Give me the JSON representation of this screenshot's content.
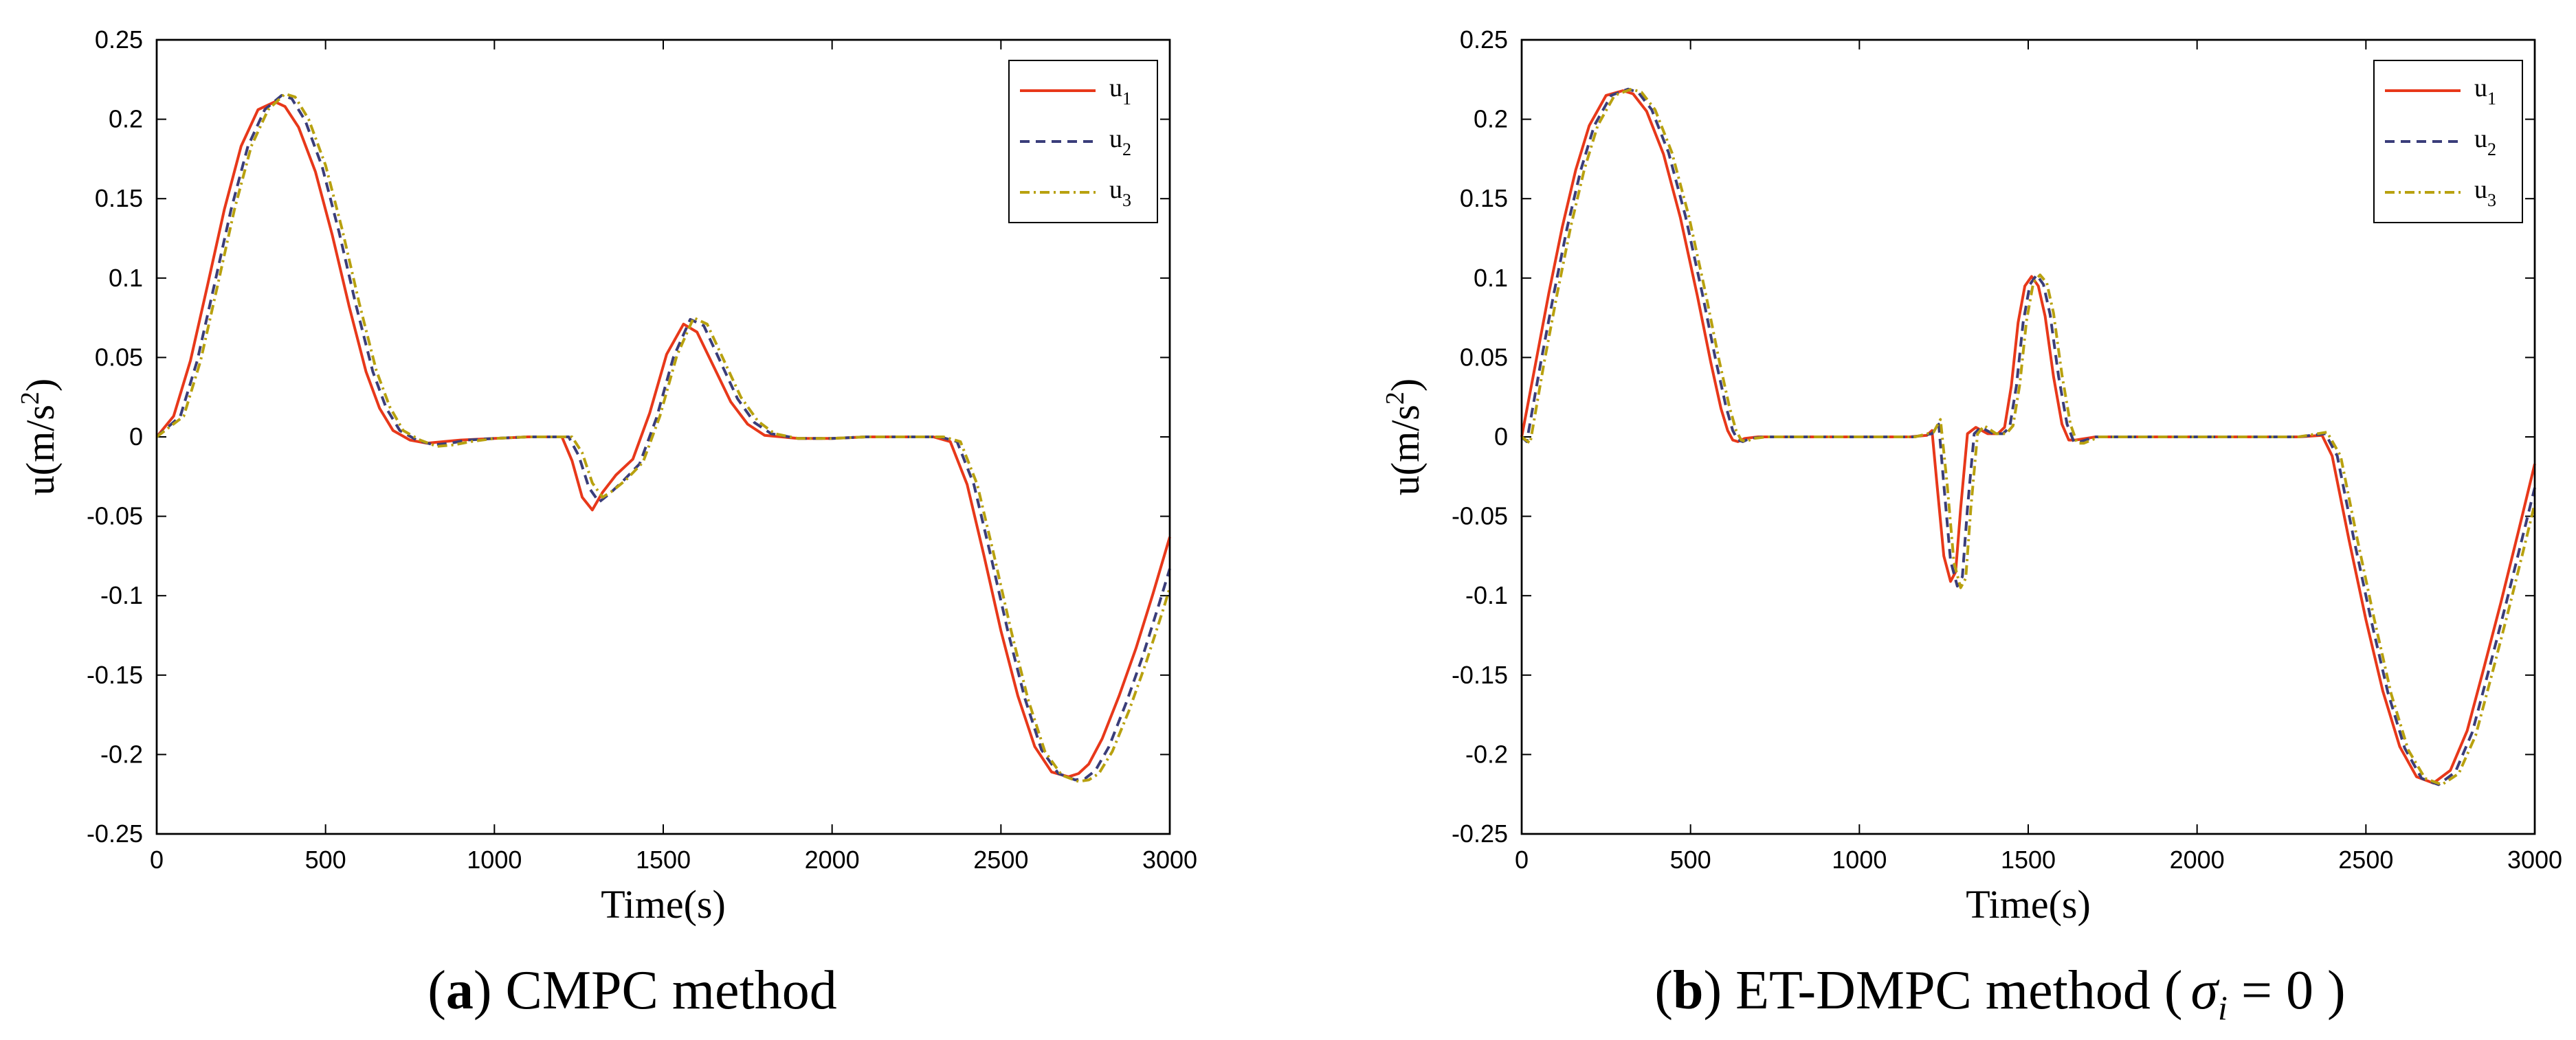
{
  "chart_data": [
    {
      "type": "line",
      "panel": "a",
      "caption_label": "a",
      "caption_text": "CMPC method",
      "xlabel": "Time(s)",
      "ylabel": "u(m/s²)",
      "ylabel_base": "u(m/s",
      "ylabel_sup": "2",
      "ylabel_close": ")",
      "xlim": [
        0,
        3000
      ],
      "ylim": [
        -0.25,
        0.25
      ],
      "xticks": [
        0,
        500,
        1000,
        1500,
        2000,
        2500,
        3000
      ],
      "yticks": [
        -0.25,
        -0.2,
        -0.15,
        -0.1,
        -0.05,
        0,
        0.05,
        0.1,
        0.15,
        0.2,
        0.25
      ],
      "legend_position": "top-right",
      "series": [
        {
          "name": "u1",
          "base": "u",
          "sub": "1",
          "color": "#e8381a",
          "dash": "solid",
          "x": [
            0,
            50,
            100,
            150,
            200,
            250,
            300,
            350,
            380,
            420,
            470,
            520,
            570,
            620,
            660,
            700,
            750,
            800,
            850,
            900,
            1000,
            1100,
            1200,
            1230,
            1260,
            1290,
            1320,
            1360,
            1410,
            1460,
            1510,
            1560,
            1600,
            1650,
            1700,
            1750,
            1800,
            1900,
            2000,
            2100,
            2200,
            2300,
            2350,
            2400,
            2450,
            2500,
            2550,
            2600,
            2650,
            2700,
            2730,
            2760,
            2800,
            2850,
            2900,
            2950,
            3000
          ],
          "y": [
            0,
            0.013,
            0.048,
            0.095,
            0.143,
            0.183,
            0.206,
            0.211,
            0.208,
            0.195,
            0.167,
            0.127,
            0.082,
            0.041,
            0.018,
            0.004,
            -0.002,
            -0.004,
            -0.003,
            -0.002,
            -0.001,
            0,
            0,
            -0.015,
            -0.038,
            -0.046,
            -0.035,
            -0.024,
            -0.014,
            0.015,
            0.052,
            0.071,
            0.066,
            0.044,
            0.022,
            0.008,
            0.001,
            -0.001,
            -0.001,
            0,
            0,
            0,
            -0.003,
            -0.03,
            -0.075,
            -0.122,
            -0.163,
            -0.195,
            -0.211,
            -0.214,
            -0.212,
            -0.206,
            -0.19,
            -0.163,
            -0.133,
            -0.099,
            -0.063
          ]
        },
        {
          "name": "u2",
          "base": "u",
          "sub": "2",
          "color": "#3a3d7a",
          "dash": "dashed",
          "x": [
            0,
            70,
            120,
            170,
            220,
            270,
            320,
            370,
            400,
            440,
            490,
            540,
            590,
            640,
            680,
            720,
            770,
            820,
            870,
            920,
            1000,
            1100,
            1220,
            1250,
            1280,
            1310,
            1340,
            1380,
            1430,
            1480,
            1530,
            1580,
            1620,
            1670,
            1720,
            1770,
            1820,
            1900,
            2000,
            2100,
            2200,
            2320,
            2370,
            2420,
            2470,
            2520,
            2570,
            2620,
            2670,
            2720,
            2750,
            2780,
            2820,
            2870,
            2920,
            2970,
            3000
          ],
          "y": [
            0,
            0.013,
            0.048,
            0.095,
            0.143,
            0.183,
            0.206,
            0.215,
            0.213,
            0.199,
            0.17,
            0.129,
            0.083,
            0.041,
            0.018,
            0.004,
            -0.002,
            -0.005,
            -0.004,
            -0.002,
            -0.001,
            0,
            0,
            -0.012,
            -0.032,
            -0.041,
            -0.036,
            -0.028,
            -0.017,
            0.012,
            0.05,
            0.074,
            0.07,
            0.047,
            0.024,
            0.009,
            0.002,
            -0.001,
            -0.001,
            0,
            0,
            0,
            -0.003,
            -0.03,
            -0.075,
            -0.122,
            -0.164,
            -0.197,
            -0.212,
            -0.216,
            -0.215,
            -0.21,
            -0.195,
            -0.168,
            -0.138,
            -0.104,
            -0.083
          ]
        },
        {
          "name": "u3",
          "base": "u",
          "sub": "3",
          "color": "#b8a10f",
          "dash": "dashdot",
          "x": [
            0,
            80,
            130,
            180,
            230,
            280,
            330,
            380,
            410,
            450,
            500,
            550,
            600,
            650,
            690,
            730,
            780,
            830,
            880,
            930,
            1000,
            1100,
            1230,
            1260,
            1290,
            1320,
            1350,
            1390,
            1440,
            1490,
            1540,
            1590,
            1630,
            1680,
            1730,
            1780,
            1830,
            1900,
            2000,
            2100,
            2200,
            2330,
            2380,
            2430,
            2480,
            2530,
            2580,
            2630,
            2680,
            2730,
            2760,
            2790,
            2830,
            2880,
            2930,
            2980,
            3000
          ],
          "y": [
            0,
            0.013,
            0.048,
            0.095,
            0.143,
            0.183,
            0.206,
            0.216,
            0.214,
            0.2,
            0.171,
            0.13,
            0.084,
            0.042,
            0.019,
            0.004,
            -0.002,
            -0.006,
            -0.005,
            -0.003,
            -0.001,
            0,
            0,
            -0.01,
            -0.029,
            -0.038,
            -0.034,
            -0.027,
            -0.016,
            0.013,
            0.051,
            0.075,
            0.071,
            0.048,
            0.025,
            0.01,
            0.002,
            -0.001,
            -0.001,
            0,
            0,
            0,
            -0.003,
            -0.03,
            -0.075,
            -0.122,
            -0.165,
            -0.198,
            -0.213,
            -0.217,
            -0.216,
            -0.212,
            -0.198,
            -0.172,
            -0.142,
            -0.109,
            -0.095
          ]
        }
      ]
    },
    {
      "type": "line",
      "panel": "b",
      "caption_label": "b",
      "caption_text": "ET-DMPC method (",
      "caption_sigma": "σ",
      "caption_sub": "i",
      "caption_tail": " = 0 )",
      "xlabel": "Time(s)",
      "ylabel": "u(m/s²)",
      "ylabel_base": "u(m/s",
      "ylabel_sup": "2",
      "ylabel_close": ")",
      "xlim": [
        0,
        3000
      ],
      "ylim": [
        -0.25,
        0.25
      ],
      "xticks": [
        0,
        500,
        1000,
        1500,
        2000,
        2500,
        3000
      ],
      "yticks": [
        -0.25,
        -0.2,
        -0.15,
        -0.1,
        -0.05,
        0,
        0.05,
        0.1,
        0.15,
        0.2,
        0.25
      ],
      "legend_position": "top-right",
      "series": [
        {
          "name": "u1",
          "base": "u",
          "sub": "1",
          "color": "#e8381a",
          "dash": "solid",
          "x": [
            0,
            40,
            80,
            120,
            160,
            200,
            250,
            300,
            330,
            370,
            420,
            470,
            520,
            560,
            590,
            610,
            625,
            640,
            660,
            700,
            800,
            1000,
            1150,
            1200,
            1215,
            1230,
            1250,
            1270,
            1285,
            1300,
            1320,
            1345,
            1380,
            1410,
            1430,
            1450,
            1470,
            1490,
            1510,
            1530,
            1550,
            1575,
            1600,
            1620,
            1640,
            1700,
            2000,
            2300,
            2370,
            2400,
            2450,
            2500,
            2550,
            2600,
            2650,
            2700,
            2750,
            2800,
            2850,
            2900,
            2950,
            3000
          ],
          "y": [
            0,
            0.045,
            0.09,
            0.132,
            0.168,
            0.196,
            0.215,
            0.218,
            0.216,
            0.205,
            0.178,
            0.138,
            0.089,
            0.047,
            0.018,
            0.004,
            -0.002,
            -0.003,
            -0.001,
            0,
            0,
            0,
            0,
            0.001,
            0.004,
            -0.03,
            -0.075,
            -0.091,
            -0.085,
            -0.045,
            0.002,
            0.006,
            0.002,
            0.002,
            0.006,
            0.032,
            0.072,
            0.095,
            0.101,
            0.095,
            0.076,
            0.038,
            0.008,
            -0.002,
            -0.002,
            0,
            0,
            0,
            0.001,
            -0.012,
            -0.065,
            -0.115,
            -0.16,
            -0.195,
            -0.214,
            -0.218,
            -0.21,
            -0.185,
            -0.145,
            -0.104,
            -0.061,
            -0.017
          ]
        },
        {
          "name": "u2",
          "base": "u",
          "sub": "2",
          "color": "#3a3d7a",
          "dash": "dashed",
          "x": [
            0,
            15,
            55,
            95,
            135,
            175,
            215,
            265,
            315,
            345,
            385,
            435,
            485,
            535,
            575,
            605,
            625,
            640,
            655,
            675,
            715,
            800,
            1000,
            1160,
            1215,
            1235,
            1250,
            1270,
            1290,
            1305,
            1320,
            1340,
            1360,
            1395,
            1425,
            1445,
            1465,
            1485,
            1505,
            1525,
            1545,
            1565,
            1590,
            1615,
            1635,
            1655,
            1700,
            2000,
            2300,
            2380,
            2415,
            2465,
            2515,
            2565,
            2615,
            2665,
            2715,
            2765,
            2815,
            2865,
            2915,
            2965,
            3000
          ],
          "y": [
            0,
            -0.003,
            0.045,
            0.09,
            0.132,
            0.168,
            0.196,
            0.215,
            0.219,
            0.217,
            0.206,
            0.179,
            0.139,
            0.09,
            0.048,
            0.019,
            0.004,
            -0.002,
            -0.003,
            -0.001,
            0,
            0,
            0,
            0,
            0.002,
            0.008,
            -0.03,
            -0.078,
            -0.094,
            -0.088,
            -0.045,
            0.002,
            0.006,
            0.002,
            0.002,
            0.006,
            0.032,
            0.072,
            0.096,
            0.102,
            0.096,
            0.077,
            0.038,
            0.008,
            -0.003,
            -0.003,
            0,
            0,
            0,
            0.002,
            -0.012,
            -0.065,
            -0.115,
            -0.161,
            -0.196,
            -0.215,
            -0.219,
            -0.211,
            -0.186,
            -0.146,
            -0.105,
            -0.062,
            -0.032
          ]
        },
        {
          "name": "u3",
          "base": "u",
          "sub": "3",
          "color": "#b8a10f",
          "dash": "dashdot",
          "x": [
            0,
            25,
            65,
            105,
            145,
            185,
            225,
            275,
            325,
            355,
            395,
            445,
            495,
            545,
            585,
            615,
            635,
            650,
            665,
            685,
            725,
            800,
            1000,
            1165,
            1220,
            1240,
            1260,
            1280,
            1300,
            1315,
            1330,
            1350,
            1370,
            1405,
            1435,
            1455,
            1475,
            1495,
            1515,
            1535,
            1555,
            1575,
            1600,
            1625,
            1645,
            1665,
            1710,
            2000,
            2300,
            2385,
            2425,
            2475,
            2525,
            2575,
            2625,
            2675,
            2725,
            2775,
            2825,
            2875,
            2925,
            2975,
            3000
          ],
          "y": [
            0,
            -0.004,
            0.045,
            0.09,
            0.132,
            0.168,
            0.196,
            0.215,
            0.219,
            0.217,
            0.206,
            0.179,
            0.139,
            0.09,
            0.048,
            0.019,
            0.004,
            -0.002,
            -0.003,
            -0.001,
            0,
            0,
            0,
            0,
            0.003,
            0.011,
            -0.03,
            -0.079,
            -0.095,
            -0.089,
            -0.045,
            0.002,
            0.007,
            0.002,
            0.002,
            0.007,
            0.033,
            0.073,
            0.097,
            0.102,
            0.097,
            0.078,
            0.039,
            0.008,
            -0.004,
            -0.004,
            0,
            0,
            0,
            0.003,
            -0.012,
            -0.065,
            -0.115,
            -0.162,
            -0.197,
            -0.215,
            -0.219,
            -0.212,
            -0.188,
            -0.148,
            -0.107,
            -0.064,
            -0.042
          ]
        }
      ]
    }
  ]
}
